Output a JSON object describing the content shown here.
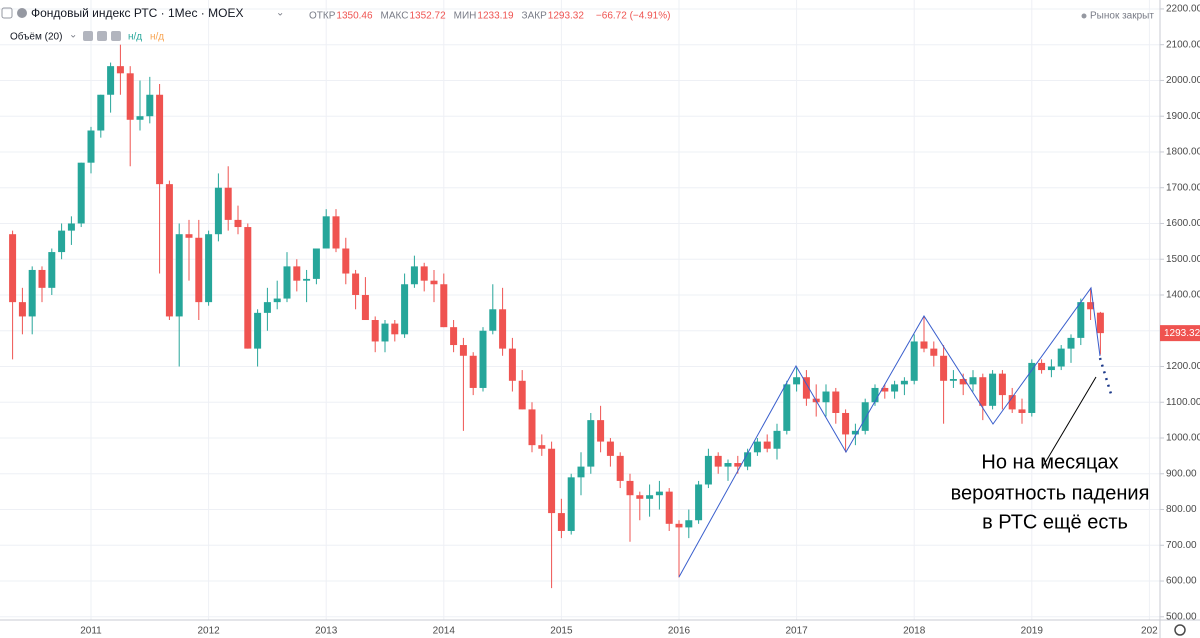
{
  "chart_data": {
    "type": "candlestick",
    "title": "Фондовый индекс РТС · 1Мес · MOEX",
    "ohlc_labels": [
      "ОТКР",
      "МАКС",
      "МИН",
      "ЗАКР"
    ],
    "change": "−66.72 (−4.91%)",
    "volume_label": "Объём (20)",
    "volume_values": [
      "н/д",
      "н/д"
    ],
    "market_status": "Рынок закрыт",
    "annotation": [
      "Но на месяцах",
      "вероятность падения",
      "в РТС ещё есть"
    ],
    "up_color": "#26a69a",
    "down_color": "#ef5350",
    "grid": true,
    "categories": [
      null,
      null,
      null,
      null,
      null,
      null,
      null,
      null,
      "2011",
      null,
      null,
      null,
      null,
      null,
      null,
      null,
      null,
      null,
      null,
      null,
      "2012",
      null,
      null,
      null,
      null,
      null,
      null,
      null,
      null,
      null,
      null,
      null,
      "2013",
      null,
      null,
      null,
      null,
      null,
      null,
      null,
      null,
      null,
      null,
      null,
      "2014",
      null,
      null,
      null,
      null,
      null,
      null,
      null,
      null,
      null,
      null,
      null,
      "2015",
      null,
      null,
      null,
      null,
      null,
      null,
      null,
      null,
      null,
      null,
      null,
      "2016",
      null,
      null,
      null,
      null,
      null,
      null,
      null,
      null,
      null,
      null,
      null,
      "2017",
      null,
      null,
      null,
      null,
      null,
      null,
      null,
      null,
      null,
      null,
      null,
      "2018",
      null,
      null,
      null,
      null,
      null,
      null,
      null,
      null,
      null,
      null,
      null,
      "2019",
      null,
      null,
      null,
      null,
      null,
      null,
      null,
      null,
      null,
      null,
      null,
      "202"
    ],
    "open": [
      1570,
      1380,
      1340,
      1470,
      1420,
      1520,
      1580,
      1600,
      1770,
      1860,
      1960,
      2040,
      2020,
      1890,
      1900,
      1960,
      1710,
      1340,
      1570,
      1560,
      1380,
      1570,
      1700,
      1610,
      1590,
      1250,
      1350,
      1380,
      1390,
      1480,
      1440,
      1445,
      1530,
      1620,
      1530,
      1460,
      1400,
      1330,
      1270,
      1320,
      1290,
      1430,
      1480,
      1440,
      1430,
      1310,
      1260,
      1230,
      1140,
      1300,
      1360,
      1250,
      1160,
      1080,
      980,
      970,
      790,
      740,
      890,
      920,
      1050,
      990,
      950,
      880,
      840,
      830,
      840,
      850,
      760,
      750,
      770,
      870,
      950,
      920,
      930,
      920,
      960,
      990,
      970,
      1020,
      1150,
      1170,
      1110,
      1100,
      1130,
      1070,
      1010,
      1020,
      1100,
      1140,
      1130,
      1150,
      1160,
      1270,
      1250,
      1230,
      1160,
      1165,
      1150,
      1170,
      1090,
      1180,
      1120,
      1080,
      1070,
      1210,
      1190,
      1200,
      1250,
      1280,
      1380,
      1350.46,
      null,
      null,
      null,
      null,
      null
    ],
    "high": [
      1580,
      1420,
      1480,
      1480,
      1530,
      1600,
      1620,
      1770,
      1870,
      1960,
      2050,
      2100,
      2040,
      2000,
      2010,
      1990,
      1720,
      1600,
      1610,
      1610,
      1580,
      1740,
      1760,
      1650,
      1600,
      1360,
      1420,
      1440,
      1520,
      1500,
      1470,
      1530,
      1640,
      1640,
      1560,
      1470,
      1450,
      1340,
      1330,
      1330,
      1460,
      1510,
      1490,
      1470,
      1460,
      1330,
      1280,
      1240,
      1310,
      1430,
      1420,
      1280,
      1190,
      1100,
      1010,
      990,
      830,
      900,
      960,
      1070,
      1090,
      1000,
      960,
      900,
      850,
      870,
      880,
      860,
      770,
      800,
      880,
      970,
      960,
      940,
      950,
      970,
      1000,
      1010,
      1040,
      1160,
      1200,
      1190,
      1150,
      1150,
      1140,
      1080,
      1040,
      1110,
      1150,
      1150,
      1160,
      1170,
      1290,
      1340,
      1270,
      1260,
      1190,
      1180,
      1190,
      1180,
      1190,
      1190,
      1140,
      1110,
      1220,
      1220,
      1220,
      1260,
      1290,
      1390,
      1420,
      1352.72,
      null,
      null,
      null,
      null,
      null
    ],
    "low": [
      1220,
      1290,
      1290,
      1380,
      1400,
      1500,
      1540,
      1590,
      1740,
      1840,
      1910,
      1960,
      1760,
      1860,
      1880,
      1460,
      1330,
      1200,
      1440,
      1330,
      1370,
      1550,
      1580,
      1570,
      1250,
      1200,
      1300,
      1360,
      1380,
      1410,
      1380,
      1430,
      1530,
      1520,
      1430,
      1360,
      1330,
      1240,
      1240,
      1270,
      1280,
      1420,
      1410,
      1380,
      1310,
      1240,
      1020,
      1120,
      1130,
      1290,
      1230,
      1130,
      1080,
      960,
      950,
      580,
      720,
      730,
      840,
      900,
      960,
      920,
      860,
      710,
      770,
      780,
      800,
      740,
      610,
      720,
      760,
      860,
      900,
      880,
      900,
      910,
      950,
      960,
      940,
      1010,
      1130,
      1090,
      1060,
      1060,
      1040,
      960,
      980,
      1010,
      1090,
      1110,
      1110,
      1120,
      1150,
      1240,
      1200,
      1040,
      1140,
      1120,
      1130,
      1050,
      1080,
      1080,
      1070,
      1040,
      1060,
      1180,
      1170,
      1190,
      1210,
      1260,
      1330,
      1233.19,
      null,
      null,
      null,
      null,
      null
    ],
    "close": [
      1380,
      1340,
      1470,
      1420,
      1520,
      1580,
      1600,
      1770,
      1860,
      1960,
      2040,
      2020,
      1890,
      1900,
      1960,
      1710,
      1340,
      1570,
      1560,
      1380,
      1570,
      1700,
      1610,
      1590,
      1250,
      1350,
      1380,
      1390,
      1480,
      1440,
      1445,
      1530,
      1620,
      1530,
      1460,
      1400,
      1330,
      1270,
      1320,
      1290,
      1430,
      1480,
      1440,
      1430,
      1310,
      1260,
      1230,
      1140,
      1300,
      1360,
      1250,
      1160,
      1080,
      980,
      970,
      790,
      740,
      890,
      920,
      1050,
      990,
      950,
      880,
      840,
      830,
      840,
      850,
      760,
      750,
      770,
      870,
      950,
      920,
      930,
      920,
      960,
      990,
      970,
      1020,
      1150,
      1170,
      1110,
      1100,
      1130,
      1070,
      1010,
      1020,
      1100,
      1140,
      1130,
      1150,
      1160,
      1270,
      1250,
      1230,
      1160,
      1165,
      1150,
      1170,
      1090,
      1180,
      1120,
      1080,
      1070,
      1210,
      1190,
      1200,
      1250,
      1280,
      1380,
      1360,
      1293.32,
      null,
      null,
      null,
      null,
      null
    ],
    "ylim": [
      491,
      2225
    ],
    "yticks": [
      {
        "value": 500,
        "label": "500.00"
      },
      {
        "value": 600,
        "label": "600.00"
      },
      {
        "value": 700,
        "label": "700.00"
      },
      {
        "value": 800,
        "label": "800.00"
      },
      {
        "value": 900,
        "label": "900.00"
      },
      {
        "value": 1000,
        "label": "1000.00"
      },
      {
        "value": 1100,
        "label": "1100.00"
      },
      {
        "value": 1200,
        "label": "1200.00"
      },
      {
        "value": 1300,
        "label": "1300.00"
      },
      {
        "value": 1400,
        "label": "1400.00"
      },
      {
        "value": 1500,
        "label": "1500.00"
      },
      {
        "value": 1600,
        "label": "1600.00"
      },
      {
        "value": 1700,
        "label": "1700.00"
      },
      {
        "value": 1800,
        "label": "1800.00"
      },
      {
        "value": 1900,
        "label": "1900.00"
      },
      {
        "value": 2000,
        "label": "2000.00"
      },
      {
        "value": 2100,
        "label": "2100.00"
      },
      {
        "value": 2200,
        "label": "2200.00"
      }
    ]
  }
}
